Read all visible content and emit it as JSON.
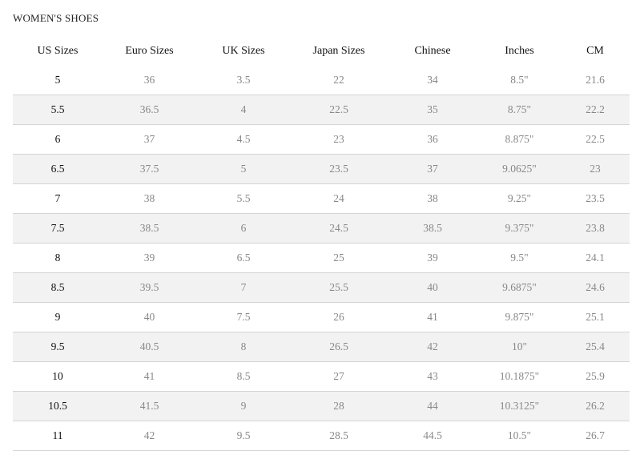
{
  "title": "WOMEN'S SHOES",
  "columns": [
    "US Sizes",
    "Euro Sizes",
    "UK Sizes",
    "Japan Sizes",
    "Chinese",
    "Inches",
    "CM"
  ],
  "rows": [
    [
      "5",
      "36",
      "3.5",
      "22",
      "34",
      "8.5\"",
      "21.6"
    ],
    [
      "5.5",
      "36.5",
      "4",
      "22.5",
      "35",
      "8.75\"",
      "22.2"
    ],
    [
      "6",
      "37",
      "4.5",
      "23",
      "36",
      "8.875\"",
      "22.5"
    ],
    [
      "6.5",
      "37.5",
      "5",
      "23.5",
      "37",
      "9.0625\"",
      "23"
    ],
    [
      "7",
      "38",
      "5.5",
      "24",
      "38",
      "9.25\"",
      "23.5"
    ],
    [
      "7.5",
      "38.5",
      "6",
      "24.5",
      "38.5",
      "9.375\"",
      "23.8"
    ],
    [
      "8",
      "39",
      "6.5",
      "25",
      "39",
      "9.5\"",
      "24.1"
    ],
    [
      "8.5",
      "39.5",
      "7",
      "25.5",
      "40",
      "9.6875\"",
      "24.6"
    ],
    [
      "9",
      "40",
      "7.5",
      "26",
      "41",
      "9.875\"",
      "25.1"
    ],
    [
      "9.5",
      "40.5",
      "8",
      "26.5",
      "42",
      "10\"",
      "25.4"
    ],
    [
      "10",
      "41",
      "8.5",
      "27",
      "43",
      "10.1875\"",
      "25.9"
    ],
    [
      "10.5",
      "41.5",
      "9",
      "28",
      "44",
      "10.3125\"",
      "26.2"
    ],
    [
      "11",
      "42",
      "9.5",
      "28.5",
      "44.5",
      "10.5\"",
      "26.7"
    ]
  ],
  "colors": {
    "alt_row": "#f2f2f2",
    "divider": "#d4d4d4",
    "value_text": "#888888"
  }
}
